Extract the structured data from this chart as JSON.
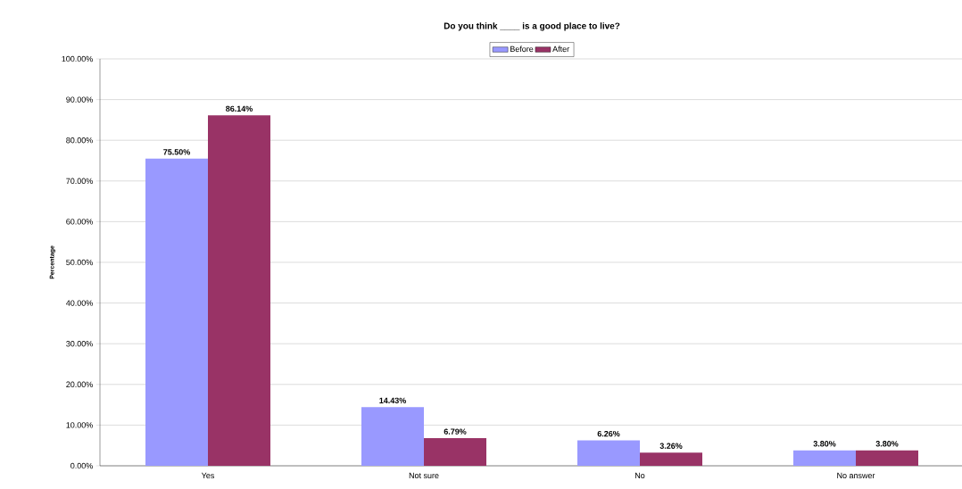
{
  "chart_data": {
    "type": "bar",
    "title": "Do you think ____ is a good place to live?",
    "ylabel": "Percentage",
    "categories": [
      "Yes",
      "Not sure",
      "No",
      "No answer"
    ],
    "series": [
      {
        "name": "Before",
        "color": "#9999ff",
        "values": [
          75.5,
          14.43,
          6.26,
          3.8
        ],
        "value_labels": [
          "75.50%",
          "14.43%",
          "6.26%",
          "3.80%"
        ]
      },
      {
        "name": "After",
        "color": "#993366",
        "values": [
          86.14,
          6.79,
          3.26,
          3.8
        ],
        "value_labels": [
          "86.14%",
          "6.79%",
          "3.26%",
          "3.80%"
        ]
      }
    ],
    "ylim": [
      0,
      100
    ],
    "yticks": [
      {
        "value": 0,
        "label": "0.00%"
      },
      {
        "value": 10,
        "label": "10.00%"
      },
      {
        "value": 20,
        "label": "20.00%"
      },
      {
        "value": 30,
        "label": "30.00%"
      },
      {
        "value": 40,
        "label": "40.00%"
      },
      {
        "value": 50,
        "label": "50.00%"
      },
      {
        "value": 60,
        "label": "60.00%"
      },
      {
        "value": 70,
        "label": "70.00%"
      },
      {
        "value": 80,
        "label": "80.00%"
      },
      {
        "value": 90,
        "label": "90.00%"
      },
      {
        "value": 100,
        "label": "100.00%"
      }
    ],
    "grid": "y",
    "legend": "top"
  }
}
